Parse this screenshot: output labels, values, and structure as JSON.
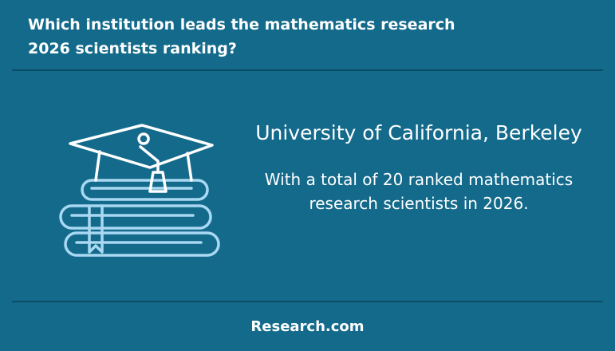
{
  "header": {
    "title_lines": [
      "Which institution leads the mathematics research",
      "2026 scientists ranking?"
    ]
  },
  "body": {
    "institution": "University of California, Berkeley",
    "description_lines": [
      "With a total of 20 ranked mathematics",
      "research scientists in 2026."
    ]
  },
  "footer": {
    "brand": "Research.com"
  }
}
